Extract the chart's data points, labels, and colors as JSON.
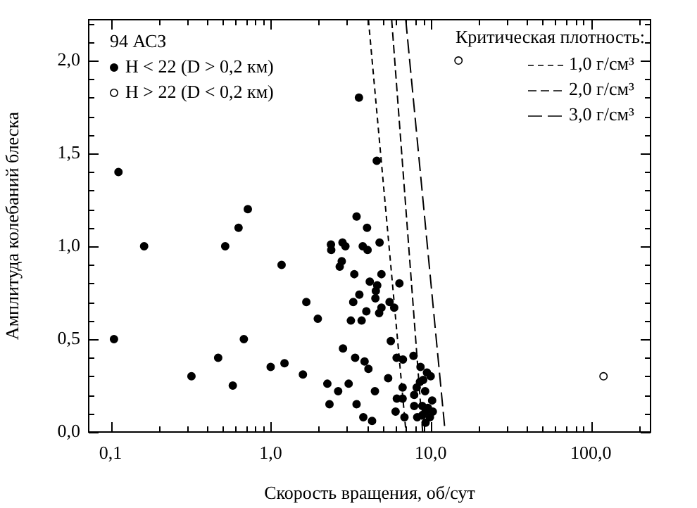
{
  "chart_data": {
    "type": "scatter",
    "xlabel": "Скорость вращения, об/сут",
    "ylabel": "Амплитуда колебаний блеска",
    "annotations": [
      "94 АСЗ"
    ],
    "legend_title": "Критическая плотность:",
    "log": "x",
    "legend": "top left",
    "grid": false,
    "xlim": [
      0.073,
      236
    ],
    "ylim": [
      0,
      2.22
    ],
    "xticks": [
      {
        "value": 0.1,
        "label": "0,1"
      },
      {
        "value": 0.2,
        "label": null
      },
      {
        "value": 0.3,
        "label": null
      },
      {
        "value": 0.4,
        "label": null
      },
      {
        "value": 0.5,
        "label": null
      },
      {
        "value": 0.6,
        "label": null
      },
      {
        "value": 0.7,
        "label": null
      },
      {
        "value": 0.8,
        "label": null
      },
      {
        "value": 0.9,
        "label": null
      },
      {
        "value": 1,
        "label": "1,0"
      },
      {
        "value": 2,
        "label": null
      },
      {
        "value": 3,
        "label": null
      },
      {
        "value": 4,
        "label": null
      },
      {
        "value": 5,
        "label": null
      },
      {
        "value": 6,
        "label": null
      },
      {
        "value": 7,
        "label": null
      },
      {
        "value": 8,
        "label": null
      },
      {
        "value": 9,
        "label": null
      },
      {
        "value": 10,
        "label": "10,0"
      },
      {
        "value": 20,
        "label": null
      },
      {
        "value": 30,
        "label": null
      },
      {
        "value": 40,
        "label": null
      },
      {
        "value": 50,
        "label": null
      },
      {
        "value": 60,
        "label": null
      },
      {
        "value": 70,
        "label": null
      },
      {
        "value": 80,
        "label": null
      },
      {
        "value": 90,
        "label": null
      },
      {
        "value": 100,
        "label": "100,0"
      },
      {
        "value": 200,
        "label": null
      }
    ],
    "yticks": [
      {
        "value": 0,
        "label": "0,0"
      },
      {
        "value": 0.1,
        "label": null
      },
      {
        "value": 0.2,
        "label": null
      },
      {
        "value": 0.3,
        "label": null
      },
      {
        "value": 0.4,
        "label": null
      },
      {
        "value": 0.5,
        "label": "0,5"
      },
      {
        "value": 0.6,
        "label": null
      },
      {
        "value": 0.7,
        "label": null
      },
      {
        "value": 0.8,
        "label": null
      },
      {
        "value": 0.9,
        "label": null
      },
      {
        "value": 1,
        "label": "1,0"
      },
      {
        "value": 1.1,
        "label": null
      },
      {
        "value": 1.2,
        "label": null
      },
      {
        "value": 1.3,
        "label": null
      },
      {
        "value": 1.4,
        "label": null
      },
      {
        "value": 1.5,
        "label": "1,5"
      },
      {
        "value": 1.6,
        "label": null
      },
      {
        "value": 1.7,
        "label": null
      },
      {
        "value": 1.8,
        "label": null
      },
      {
        "value": 1.9,
        "label": null
      },
      {
        "value": 2,
        "label": "2,0"
      },
      {
        "value": 2.1,
        "label": null
      },
      {
        "value": 2.2,
        "label": null
      }
    ],
    "series": [
      {
        "name": "H < 22 (D > 0,2 км)",
        "color": "#000000",
        "marker": "circle",
        "x": [
          0.112,
          0.162,
          0.105,
          0.32,
          0.47,
          0.58,
          0.52,
          0.63,
          0.72,
          0.68,
          1.0,
          1.22,
          1.17,
          1.59,
          1.67,
          1.97,
          3.56,
          4.6,
          3.44,
          4.0,
          2.38,
          2.39,
          2.81,
          2.93,
          3.76,
          4.03,
          4.79,
          2.78,
          2.7,
          3.33,
          4.92,
          4.16,
          4.63,
          6.37,
          3.58,
          4.54,
          4.51,
          3.28,
          5.53,
          5.91,
          4.92,
          3.96,
          4.76,
          3.17,
          3.7,
          5.63,
          2.83,
          3.37,
          3.86,
          4.08,
          6.12,
          6.7,
          7.8,
          2.26,
          2.64,
          3.07,
          2.33,
          3.44,
          3.79,
          4.3,
          4.48,
          5.42,
          6.67,
          6.14,
          6.67,
          6.03,
          6.85,
          8.63,
          9.47,
          9.99,
          8.97,
          8.56,
          8.17,
          9.22,
          7.88,
          10.2,
          8.85,
          9.6,
          7.88,
          9.28,
          10.3,
          8.23,
          8.85,
          9.88,
          9.28
        ],
        "values": [
          1.4,
          1.0,
          0.5,
          0.3,
          0.4,
          0.25,
          1.0,
          1.1,
          1.2,
          0.5,
          0.35,
          0.37,
          0.9,
          0.31,
          0.7,
          0.61,
          1.8,
          1.46,
          1.16,
          1.1,
          1.01,
          0.98,
          1.02,
          1.0,
          1.0,
          0.98,
          1.02,
          0.92,
          0.89,
          0.85,
          0.85,
          0.81,
          0.79,
          0.8,
          0.74,
          0.76,
          0.72,
          0.7,
          0.7,
          0.67,
          0.67,
          0.65,
          0.64,
          0.6,
          0.6,
          0.49,
          0.45,
          0.4,
          0.38,
          0.34,
          0.4,
          0.39,
          0.41,
          0.26,
          0.22,
          0.26,
          0.15,
          0.15,
          0.08,
          0.06,
          0.22,
          0.29,
          0.24,
          0.18,
          0.18,
          0.11,
          0.08,
          0.35,
          0.32,
          0.3,
          0.28,
          0.27,
          0.24,
          0.22,
          0.2,
          0.17,
          0.14,
          0.13,
          0.14,
          0.11,
          0.11,
          0.08,
          0.09,
          0.08,
          0.05
        ]
      },
      {
        "name": "H > 22 (D < 0,2 км)",
        "color": "#ffffff",
        "marker": "circle",
        "x": [
          14.9,
          120
        ],
        "values": [
          2.0,
          0.3
        ]
      },
      {
        "name": "1,0 г/см³",
        "type": "line",
        "color": "#000000",
        "line_style": "dashed",
        "marker": "none",
        "x": [
          4.08,
          7.0
        ],
        "values": [
          2.22,
          0
        ]
      },
      {
        "name": "2,0 г/см³",
        "type": "line",
        "color": "#000000",
        "line_style": "dashed",
        "marker": "none",
        "x": [
          5.7,
          8.9
        ],
        "values": [
          2.22,
          0
        ]
      },
      {
        "name": "3,0 г/см³",
        "type": "line",
        "color": "#000000",
        "line_style": "dashed",
        "marker": "none",
        "x": [
          6.98,
          12.3
        ],
        "values": [
          2.22,
          0
        ]
      }
    ]
  }
}
